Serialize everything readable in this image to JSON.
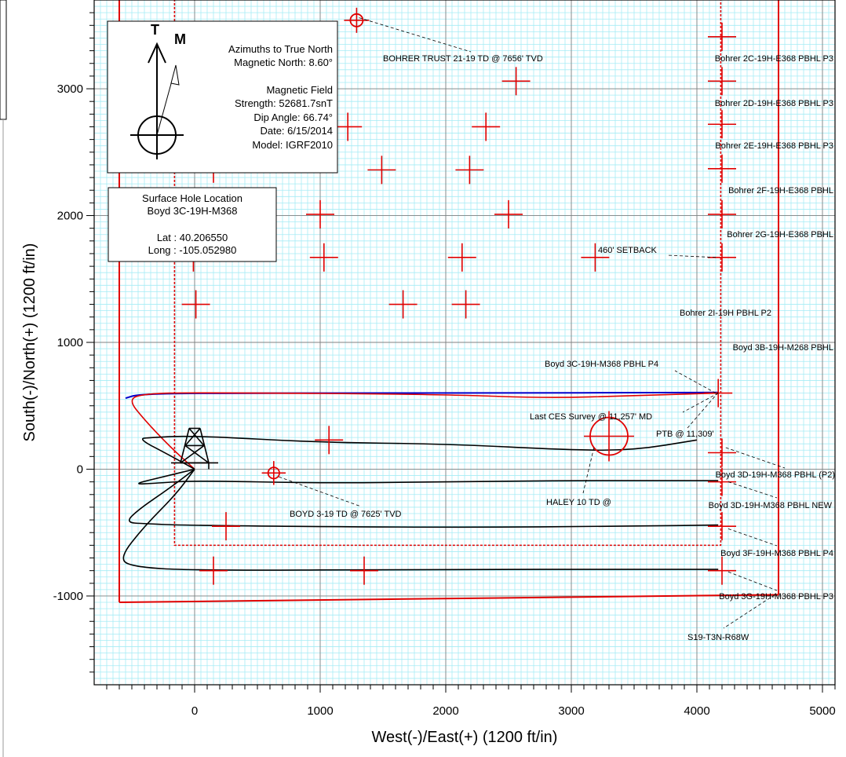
{
  "axes": {
    "x_title": "West(-)/East(+) (1200 ft/in)",
    "y_title": "South(-)/North(+) (1200 ft/in)",
    "x_range": [
      -800,
      5100
    ],
    "y_range": [
      -1700,
      3700
    ],
    "x_ticks": [
      0,
      1000,
      2000,
      3000,
      4000,
      5000
    ],
    "y_ticks": [
      -1000,
      0,
      1000,
      2000,
      3000
    ],
    "grid_minor": 50,
    "grid_major": 1000
  },
  "colors": {
    "minor_grid": "#a6ecf5",
    "major_grid": "#808080",
    "lease": "#e00000",
    "target": "#e00000",
    "trace": "#000000",
    "plan": "#0000cc"
  },
  "north_box": {
    "t_label": "T",
    "m_label": "M",
    "lines": [
      "Azimuths to True North",
      "Magnetic North: 8.60°",
      "",
      "Magnetic Field",
      "Strength: 52681.7snT",
      "Dip Angle: 66.74°",
      "Date: 6/15/2014",
      "Model: IGRF2010"
    ],
    "magnetic_declination_deg": 8.6
  },
  "surface_box": {
    "lines": [
      "Surface Hole Location",
      "Boyd 3C-19H-M368",
      "",
      "Lat :  40.206550",
      "Long :  -105.052980"
    ]
  },
  "lease": {
    "outer": [
      [
        -600,
        -1050
      ],
      [
        -600,
        3800
      ],
      [
        4650,
        3800
      ],
      [
        4650,
        -990
      ]
    ],
    "bottom_line": [
      [
        -600,
        -1050
      ],
      [
        4650,
        -990
      ]
    ],
    "setback": [
      [
        -160,
        3800
      ],
      [
        -160,
        -600
      ],
      [
        4190,
        -600
      ],
      [
        4190,
        3800
      ]
    ]
  },
  "crosses": [
    [
      1220,
      2700
    ],
    [
      2320,
      2700
    ],
    [
      1490,
      2360
    ],
    [
      2190,
      2360
    ],
    [
      1000,
      2010
    ],
    [
      2500,
      2010
    ],
    [
      1030,
      1670
    ],
    [
      2130,
      1670
    ],
    [
      1660,
      1300
    ],
    [
      2160,
      1300
    ],
    [
      3190,
      1670
    ],
    [
      2560,
      3060
    ],
    [
      10,
      1300
    ],
    [
      -10,
      1670
    ],
    [
      -30,
      2010
    ],
    [
      150,
      2370
    ],
    [
      1070,
      230
    ],
    [
      4200,
      3410
    ],
    [
      4200,
      3060
    ],
    [
      4200,
      2720
    ],
    [
      4200,
      2370
    ],
    [
      4200,
      2010
    ],
    [
      4200,
      1670
    ],
    [
      4170,
      600
    ],
    [
      4200,
      130
    ],
    [
      4200,
      -100
    ],
    [
      4200,
      -450
    ],
    [
      4200,
      -800
    ],
    [
      250,
      -450
    ],
    [
      150,
      -800
    ],
    [
      1350,
      -800
    ]
  ],
  "circle_targets": [
    {
      "x": 1290,
      "y": 3540,
      "r": 50
    },
    {
      "x": 630,
      "y": -30,
      "r": 45
    },
    {
      "x": 3300,
      "y": 260,
      "r": 150
    }
  ],
  "traces": {
    "plan": [
      [
        -550,
        560
      ],
      [
        -450,
        590
      ],
      [
        0,
        600
      ],
      [
        2000,
        600
      ],
      [
        4170,
        605
      ]
    ],
    "actual_3c": [
      [
        0,
        0
      ],
      [
        -200,
        180
      ],
      [
        -400,
        390
      ],
      [
        -530,
        550
      ],
      [
        -400,
        595
      ],
      [
        0,
        605
      ],
      [
        2000,
        590
      ],
      [
        2800,
        560
      ],
      [
        3500,
        580
      ],
      [
        4170,
        600
      ]
    ],
    "w1": [
      [
        0,
        0
      ],
      [
        -200,
        110
      ],
      [
        -450,
        240
      ],
      [
        -350,
        250
      ],
      [
        0,
        265
      ],
      [
        1000,
        210
      ],
      [
        2000,
        200
      ],
      [
        3000,
        150
      ],
      [
        3500,
        150
      ],
      [
        4000,
        230
      ]
    ],
    "w2": [
      [
        0,
        0
      ],
      [
        -250,
        -60
      ],
      [
        -500,
        -120
      ],
      [
        -300,
        -110
      ],
      [
        0,
        -90
      ],
      [
        1000,
        -110
      ],
      [
        2000,
        -100
      ],
      [
        3000,
        -90
      ],
      [
        4170,
        -90
      ]
    ],
    "w3": [
      [
        0,
        0
      ],
      [
        -200,
        -150
      ],
      [
        -450,
        -320
      ],
      [
        -550,
        -420
      ],
      [
        -400,
        -430
      ],
      [
        0,
        -445
      ],
      [
        2000,
        -460
      ],
      [
        3500,
        -450
      ],
      [
        4170,
        -440
      ]
    ],
    "w4": [
      [
        0,
        0
      ],
      [
        -150,
        -200
      ],
      [
        -400,
        -450
      ],
      [
        -600,
        -700
      ],
      [
        -500,
        -770
      ],
      [
        0,
        -800
      ],
      [
        2000,
        -790
      ],
      [
        3500,
        -790
      ],
      [
        4170,
        -790
      ]
    ]
  },
  "labels": [
    {
      "id": "bohrer-trust",
      "text": "BOHRER TRUST 21-19 TD @ 7656' TVD",
      "tx": 488,
      "ty": 78,
      "anchor": "start",
      "from": [
        1310,
        3560
      ],
      "to": [
        600,
        66
      ]
    },
    {
      "id": "bohrer-2c",
      "text": "Bohrer 2C-19H-E368 PBHL P3",
      "tx": 1062,
      "ty": 78,
      "anchor": "end",
      "from": null,
      "to": null
    },
    {
      "id": "bohrer-2d",
      "text": "Bohrer 2D-19H-E368 PBHL P3",
      "tx": 1062,
      "ty": 135,
      "anchor": "end",
      "from": null,
      "to": null
    },
    {
      "id": "bohrer-2e",
      "text": "Bohrer 2E-19H-E368 PBHL P3",
      "tx": 1062,
      "ty": 189,
      "anchor": "end",
      "from": null,
      "to": null
    },
    {
      "id": "bohrer-2f",
      "text": "Bohrer 2F-19H-E368 PBHL",
      "tx": 1062,
      "ty": 246,
      "anchor": "end",
      "from": null,
      "to": null
    },
    {
      "id": "bohrer-2g",
      "text": "Bohrer 2G-19H-E368 PBHL",
      "tx": 1062,
      "ty": 302,
      "anchor": "end",
      "from": null,
      "to": null
    },
    {
      "id": "setback",
      "text": "460' SETBACK",
      "tx": 762,
      "ty": 322,
      "anchor": "start",
      "from": [
        4150,
        1670
      ],
      "to": [
        850,
        325
      ]
    },
    {
      "id": "bohrer-2i",
      "text": "Bohrer 2I-19H PBHL P2",
      "tx": 866,
      "ty": 402,
      "anchor": "start",
      "from": null,
      "to": null
    },
    {
      "id": "boyd-3b",
      "text": "Boyd 3B-19H-M268 PBHL",
      "tx": 1062,
      "ty": 446,
      "anchor": "end",
      "from": null,
      "to": null
    },
    {
      "id": "boyd-3c",
      "text": "Boyd 3C-19H-M368 PBHL P4",
      "tx": 694,
      "ty": 467,
      "anchor": "start",
      "from": [
        4150,
        600
      ],
      "to": [
        860,
        472
      ]
    },
    {
      "id": "last-ces",
      "text": "Last CES Survey @ 11,257' MD",
      "tx": 675,
      "ty": 534,
      "anchor": "start",
      "from": [
        4170,
        600
      ],
      "to": [
        870,
        525
      ]
    },
    {
      "id": "ptb",
      "text": "PTB @ 11,309'",
      "tx": 836,
      "ty": 556,
      "anchor": "start",
      "from": [
        4170,
        605
      ],
      "to": [
        876,
        545
      ]
    },
    {
      "id": "boyd-3d-p2",
      "text": "Boyd 3D-19H-M368 PBHL (P2)",
      "tx": 1064,
      "ty": 608,
      "anchor": "end",
      "from": [
        4230,
        170
      ],
      "to": [
        1000,
        596
      ]
    },
    {
      "id": "haley-10",
      "text": "HALEY 10 TD @",
      "tx": 696,
      "ty": 643,
      "anchor": "start",
      "from": [
        3180,
        170
      ],
      "to": [
        743,
        628
      ]
    },
    {
      "id": "boyd-3d-new",
      "text": "Boyd 3D-19H-M368 PBHL NEW",
      "tx": 1060,
      "ty": 647,
      "anchor": "end",
      "from": [
        4250,
        -100
      ],
      "to": [
        990,
        634
      ]
    },
    {
      "id": "boyd-3-19",
      "text": "BOYD 3-19 TD @ 7625' TVD",
      "tx": 369,
      "ty": 658,
      "anchor": "start",
      "from": [
        670,
        -60
      ],
      "to": [
        460,
        645
      ]
    },
    {
      "id": "boyd-3f",
      "text": "Boyd 3F-19H-M368 PBHL P4",
      "tx": 1062,
      "ty": 708,
      "anchor": "end",
      "from": [
        4250,
        -470
      ],
      "to": [
        990,
        695
      ]
    },
    {
      "id": "boyd-3g",
      "text": "Boyd 3G-19H-M368 PBHL P3",
      "tx": 1062,
      "ty": 763,
      "anchor": "end",
      "from": [
        4250,
        -810
      ],
      "to": [
        990,
        752
      ]
    },
    {
      "id": "s19",
      "text": "S19-T3N-R68W",
      "tx": 876,
      "ty": 815,
      "anchor": "start",
      "from": [
        4620,
        -990
      ],
      "to": [
        922,
        800
      ]
    }
  ]
}
